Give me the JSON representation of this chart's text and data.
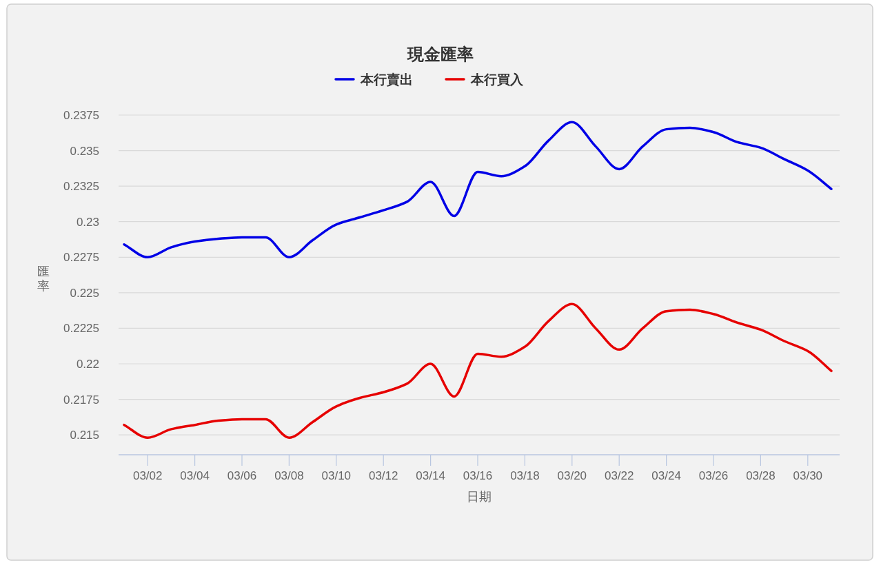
{
  "chart_data": {
    "type": "line",
    "title": "現金匯率",
    "xlabel": "日期",
    "ylabel": "匯率",
    "categories": [
      null,
      "03/02",
      null,
      "03/04",
      null,
      "03/06",
      null,
      "03/08",
      null,
      "03/10",
      null,
      "03/12",
      null,
      "03/14",
      null,
      "03/16",
      null,
      "03/18",
      null,
      "03/20",
      null,
      "03/22",
      null,
      "03/24",
      null,
      "03/26",
      null,
      "03/28",
      null,
      "03/30",
      null
    ],
    "series": [
      {
        "name": "本行賣出",
        "color": "#0000e6",
        "values": [
          0.2284,
          0.2275,
          0.2282,
          0.2286,
          0.2288,
          0.2289,
          0.2289,
          0.2275,
          0.2287,
          0.2298,
          0.2303,
          0.2308,
          0.2314,
          0.2328,
          0.2304,
          0.2335,
          0.2332,
          0.2339,
          0.2357,
          0.237,
          0.2353,
          0.2337,
          0.2353,
          0.2365,
          0.2366,
          0.2363,
          0.2356,
          0.2352,
          0.2344,
          0.2336,
          0.2323
        ]
      },
      {
        "name": "本行買入",
        "color": "#e60000",
        "values": [
          0.2157,
          0.2148,
          0.2154,
          0.2157,
          0.216,
          0.2161,
          0.2161,
          0.2148,
          0.2159,
          0.217,
          0.2176,
          0.218,
          0.2186,
          0.22,
          0.2177,
          0.2207,
          0.2205,
          0.2212,
          0.223,
          0.2242,
          0.2225,
          0.221,
          0.2225,
          0.2237,
          0.2238,
          0.2235,
          0.2229,
          0.2224,
          0.2216,
          0.2209,
          0.2195
        ]
      }
    ],
    "ylim": [
      0.2136,
      0.2375
    ],
    "yticks": [
      0.215,
      0.2175,
      0.22,
      0.2225,
      0.225,
      0.2275,
      0.23,
      0.2325,
      0.235,
      0.2375
    ],
    "grid": "y",
    "legend": "top",
    "marker": "none",
    "line_style": "solid"
  }
}
